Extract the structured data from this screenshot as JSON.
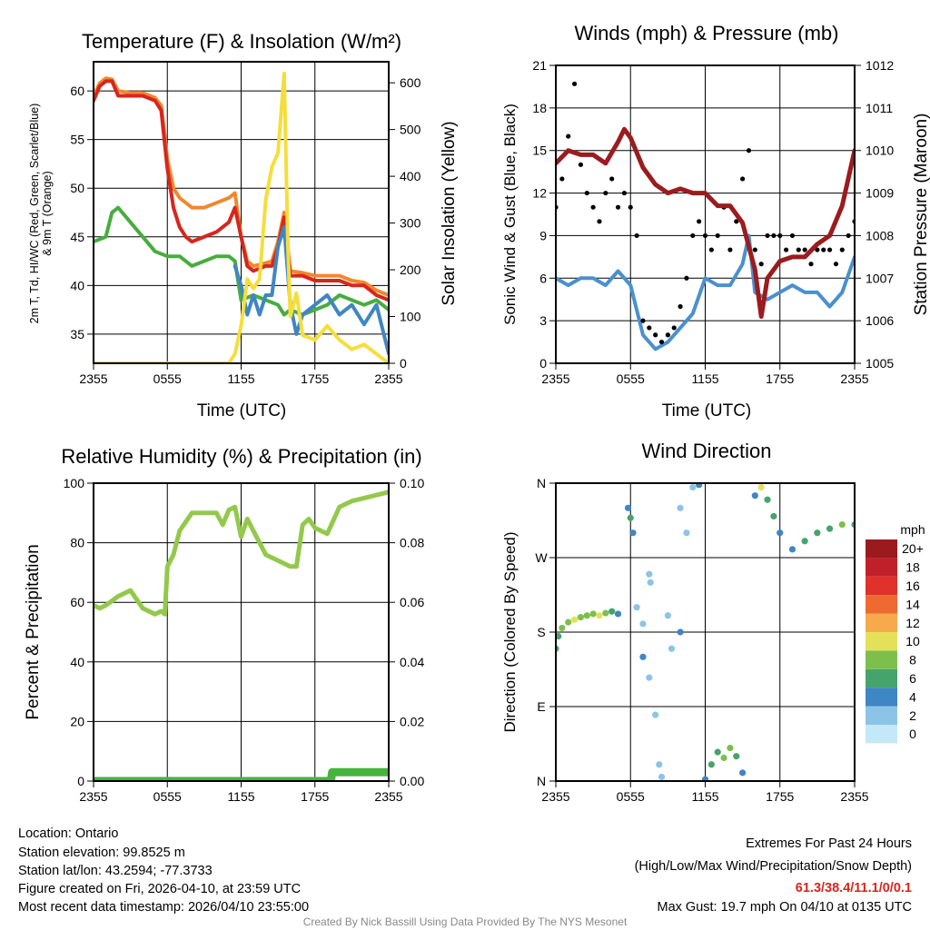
{
  "chart_data": [
    {
      "type": "line",
      "title": "Temperature (F) & Insolation (W/m²)",
      "xlabel": "Time (UTC)",
      "ylabel": "2m T, Td, HI/WC (Red, Green, Scarlet/Blue) & 9m T (Orange)",
      "ylabel_line1": "2m T, Td, HI/WC (Red, Green, Scarlet/Blue)",
      "ylabel_line2": "& 9m T (Orange)",
      "y2label": "Solar Insolation (Yellow)",
      "xticks": [
        "2355",
        "0555",
        "1155",
        "1755",
        "2355"
      ],
      "yticks": [
        "35",
        "40",
        "45",
        "50",
        "55",
        "60"
      ],
      "y2ticks": [
        "0",
        "100",
        "200",
        "300",
        "400",
        "500",
        "600"
      ],
      "xlim": [
        0,
        24
      ],
      "ylim": [
        32,
        63
      ],
      "y2lim": [
        0,
        645
      ],
      "series": [
        {
          "name": "9m T",
          "color": "#f0882e",
          "axis": "left",
          "x": [
            0,
            0.5,
            1,
            1.5,
            2,
            3,
            4,
            5,
            5.5,
            6,
            6.5,
            7,
            8,
            9,
            10,
            11,
            11.5,
            12,
            12.5,
            13,
            14,
            14.5,
            15,
            15.5,
            16,
            17,
            18,
            19,
            20,
            21,
            22,
            23,
            24
          ],
          "y": [
            59.5,
            60.8,
            61.3,
            61.2,
            60,
            59.8,
            59.8,
            59.3,
            58.5,
            53,
            50,
            49,
            48,
            48,
            48.5,
            49,
            49.5,
            45,
            42.5,
            42,
            42.3,
            42.5,
            44.5,
            47.5,
            41.5,
            41.3,
            41,
            41,
            41,
            40.5,
            40.3,
            39.5,
            39
          ]
        },
        {
          "name": "2m T",
          "color": "#d7261e",
          "axis": "left",
          "x": [
            0,
            0.5,
            1,
            1.5,
            2,
            3,
            4,
            5,
            5.5,
            6,
            6.5,
            7,
            7.5,
            8,
            9,
            10,
            11,
            11.5,
            12,
            12.5,
            13,
            14,
            14.5,
            15,
            15.5,
            16,
            17,
            18,
            19,
            20,
            21,
            22,
            23,
            24
          ],
          "y": [
            59,
            60.5,
            61,
            61,
            59.5,
            59.5,
            59.5,
            59,
            58,
            52,
            48,
            46,
            45,
            44.5,
            45,
            45.5,
            46.5,
            48,
            45,
            42,
            41.5,
            42,
            42,
            44,
            47,
            41,
            41,
            40.5,
            40.5,
            40.5,
            40,
            40,
            39,
            38.5
          ]
        },
        {
          "name": "Td",
          "color": "#47ad3e",
          "axis": "left",
          "x": [
            0,
            1,
            1.5,
            2,
            3,
            4,
            5,
            6,
            7,
            8,
            9,
            10,
            11,
            11.5,
            12,
            13,
            14,
            15,
            15.5,
            16,
            17,
            18,
            19,
            20,
            21,
            22,
            23,
            24
          ],
          "y": [
            44.5,
            45,
            47.5,
            48,
            46.5,
            45,
            43.5,
            43,
            43,
            42,
            42.5,
            43,
            43,
            42.5,
            38.5,
            39,
            38.5,
            38,
            37,
            37.5,
            37,
            37.5,
            38,
            39,
            38.5,
            38,
            38.5,
            37.5
          ]
        },
        {
          "name": "WC",
          "color": "#3f86c4",
          "axis": "left",
          "x": [
            11.5,
            12,
            12.5,
            13,
            13.5,
            14,
            14.5,
            15,
            15.5,
            16,
            16.5,
            17,
            18,
            19,
            20,
            21,
            22,
            23,
            24
          ],
          "y": [
            42,
            40,
            37,
            39,
            37,
            39,
            39,
            44,
            46,
            38,
            35,
            37,
            38,
            39,
            37,
            38,
            36,
            38,
            33
          ]
        },
        {
          "name": "Solar Insolation",
          "color": "#f5de3c",
          "axis": "right",
          "x": [
            0,
            11,
            11.5,
            12,
            12.5,
            13,
            13.5,
            14,
            14.5,
            15,
            15.5,
            15.8,
            16,
            16.5,
            17,
            18,
            19,
            20,
            21,
            22,
            23,
            24
          ],
          "y": [
            0,
            0,
            20,
            80,
            180,
            160,
            180,
            350,
            420,
            450,
            620,
            250,
            100,
            150,
            60,
            50,
            80,
            50,
            30,
            40,
            20,
            0
          ]
        }
      ]
    },
    {
      "type": "line",
      "title": "Winds (mph) & Pressure (mb)",
      "xlabel": "Time (UTC)",
      "ylabel": "Sonic Wind & Gust (Blue, Black)",
      "y2label": "Station Pressure (Maroon)",
      "xticks": [
        "2355",
        "0555",
        "1155",
        "1755",
        "2355"
      ],
      "yticks": [
        "0",
        "3",
        "6",
        "9",
        "12",
        "15",
        "18",
        "21"
      ],
      "y2ticks": [
        "1005",
        "1006",
        "1007",
        "1008",
        "1009",
        "1010",
        "1011",
        "1012"
      ],
      "xlim": [
        0,
        24
      ],
      "ylim": [
        0,
        21
      ],
      "y2lim": [
        1005,
        1012
      ],
      "series": [
        {
          "name": "Sonic Wind",
          "color": "#4a90cf",
          "axis": "left",
          "x": [
            0,
            1,
            2,
            3,
            4,
            5,
            6,
            7,
            8,
            9,
            10,
            11,
            12,
            13,
            14,
            15,
            15.5,
            16,
            17,
            18,
            19,
            20,
            21,
            22,
            23,
            24
          ],
          "y": [
            6,
            5.5,
            6,
            6,
            5.5,
            6.5,
            5.5,
            2,
            1,
            1.5,
            2.5,
            3.5,
            6,
            5.5,
            5.5,
            7,
            9,
            5,
            4.5,
            5,
            5.5,
            5,
            5,
            4,
            5,
            7.5
          ]
        },
        {
          "name": "Gust",
          "color": "#000000",
          "axis": "left",
          "mode": "points",
          "x": [
            0,
            0.5,
            1,
            1.5,
            2,
            2.5,
            3,
            3.5,
            4,
            4.5,
            5,
            5.5,
            6,
            6.5,
            7,
            7.5,
            8,
            8.5,
            9,
            9.5,
            10,
            10.5,
            11,
            11.5,
            12,
            12.5,
            13,
            13.5,
            14,
            14.5,
            15,
            15.5,
            16,
            16.5,
            17,
            17.5,
            18,
            18.5,
            19,
            19.5,
            20,
            20.5,
            21,
            21.5,
            22,
            22.5,
            23,
            23.5,
            24
          ],
          "y": [
            11,
            13,
            16,
            19.7,
            14,
            12,
            11,
            10,
            12,
            13,
            11,
            12,
            11,
            9,
            3,
            2.5,
            2,
            1.5,
            2,
            2.5,
            4,
            6,
            9,
            10,
            9,
            8,
            9,
            11,
            8,
            10,
            13,
            15,
            8,
            7,
            9,
            9,
            9,
            8,
            9,
            8,
            8,
            7,
            8,
            8,
            8,
            7,
            8,
            9,
            10
          ]
        },
        {
          "name": "Station Pressure",
          "color": "#9b1b1e",
          "axis": "right",
          "x": [
            0,
            1,
            2,
            3,
            4,
            5,
            5.5,
            6,
            7,
            8,
            9,
            10,
            11,
            12,
            13,
            14,
            15,
            16,
            16.5,
            17,
            18,
            19,
            20,
            21,
            22,
            23,
            24
          ],
          "y": [
            1009.7,
            1010,
            1009.9,
            1009.9,
            1009.7,
            1010.2,
            1010.5,
            1010.3,
            1009.6,
            1009.2,
            1009,
            1009.1,
            1009,
            1009,
            1008.7,
            1008.7,
            1008.3,
            1007.2,
            1006.1,
            1007,
            1007.4,
            1007.5,
            1007.5,
            1007.8,
            1008,
            1008.7,
            1010
          ]
        }
      ]
    },
    {
      "type": "line",
      "title": "Relative Humidity (%) & Precipitation (in)",
      "ylabel": "Percent & Precipitation",
      "xticks": [
        "2355",
        "0555",
        "1155",
        "1755",
        "2355"
      ],
      "yticks": [
        "0",
        "20",
        "40",
        "60",
        "80",
        "100"
      ],
      "y2ticks": [
        "0.00",
        "0.02",
        "0.04",
        "0.06",
        "0.08",
        "0.10"
      ],
      "xlim": [
        0,
        24
      ],
      "ylim": [
        0,
        100
      ],
      "y2lim": [
        0,
        0.1
      ],
      "series": [
        {
          "name": "Relative Humidity",
          "color": "#93c94a",
          "axis": "left",
          "x": [
            0,
            0.5,
            1,
            2,
            3,
            3.5,
            4,
            5,
            5.5,
            5.8,
            6,
            6.5,
            7,
            7.5,
            8,
            9,
            10,
            10.5,
            11,
            11.5,
            12,
            12.5,
            13,
            14,
            15,
            16,
            16.5,
            17,
            17.5,
            18,
            19,
            20,
            21,
            22,
            23,
            24
          ],
          "y": [
            59,
            58,
            59,
            62,
            64,
            61,
            58,
            56,
            57,
            56,
            72,
            76,
            84,
            87,
            90,
            90,
            90,
            86,
            91,
            92,
            82,
            88,
            84,
            76,
            74,
            72,
            72,
            86,
            88,
            85,
            83,
            92,
            94,
            95,
            96,
            97
          ]
        },
        {
          "name": "Precipitation",
          "color": "#47b33f",
          "axis": "right",
          "x": [
            0,
            19.3,
            19.4,
            24
          ],
          "y": [
            0,
            0,
            0.003,
            0.003
          ]
        }
      ]
    },
    {
      "type": "scatter",
      "title": "Wind Direction",
      "ylabel": "Direction (Colored By Speed)",
      "xticks": [
        "2355",
        "0555",
        "1155",
        "1755",
        "2355"
      ],
      "yticks": [
        "N",
        "E",
        "S",
        "W",
        "N"
      ],
      "xlim": [
        0,
        24
      ],
      "ylim": [
        0,
        360
      ],
      "legend_title": "mph",
      "legend_labels": [
        "0",
        "2",
        "4",
        "6",
        "8",
        "10",
        "12",
        "14",
        "16",
        "18",
        "20+"
      ],
      "legend_colors": [
        "#c4e8f7",
        "#8cc4e8",
        "#3f86c4",
        "#45a46c",
        "#7dbf4c",
        "#e5e05a",
        "#f6aa4a",
        "#ee6a30",
        "#e0312a",
        "#c0202a",
        "#9a1a1e"
      ],
      "points": [
        [
          0,
          160,
          6
        ],
        [
          0.2,
          175,
          6
        ],
        [
          0.5,
          185,
          7
        ],
        [
          1,
          192,
          8
        ],
        [
          1.5,
          195,
          10
        ],
        [
          2,
          198,
          7
        ],
        [
          2.5,
          200,
          8
        ],
        [
          3,
          202,
          8
        ],
        [
          3.5,
          200,
          9
        ],
        [
          4,
          203,
          7
        ],
        [
          4.5,
          205,
          5
        ],
        [
          5,
          202,
          4
        ],
        [
          5.8,
          330,
          4
        ],
        [
          6,
          318,
          6
        ],
        [
          6.2,
          300,
          3
        ],
        [
          6.5,
          210,
          2
        ],
        [
          7,
          190,
          1
        ],
        [
          7,
          150,
          3
        ],
        [
          7.5,
          250,
          1
        ],
        [
          7.6,
          240,
          2
        ],
        [
          7.5,
          125,
          1
        ],
        [
          8,
          80,
          1
        ],
        [
          8.3,
          20,
          1
        ],
        [
          8.5,
          5,
          1
        ],
        [
          9,
          200,
          1
        ],
        [
          9.3,
          160,
          2
        ],
        [
          10,
          180,
          3
        ],
        [
          10,
          330,
          1
        ],
        [
          10.5,
          300,
          2
        ],
        [
          11,
          355,
          2
        ],
        [
          11.5,
          358,
          3
        ],
        [
          12,
          2,
          3
        ],
        [
          12.5,
          20,
          5
        ],
        [
          13,
          35,
          6
        ],
        [
          13.5,
          28,
          7
        ],
        [
          14,
          40,
          7
        ],
        [
          14.5,
          30,
          6
        ],
        [
          15,
          10,
          4
        ],
        [
          16,
          345,
          4
        ],
        [
          16.5,
          355,
          10
        ],
        [
          17,
          340,
          6
        ],
        [
          17.5,
          320,
          6
        ],
        [
          18,
          300,
          4
        ],
        [
          19,
          280,
          4
        ],
        [
          20,
          290,
          5
        ],
        [
          21,
          300,
          5
        ],
        [
          22,
          305,
          6
        ],
        [
          23,
          310,
          7
        ],
        [
          24,
          310,
          5
        ]
      ]
    }
  ],
  "footer": {
    "location": "Location: Ontario",
    "elevation": "Station elevation: 99.8525 m",
    "latlon": "Station lat/lon: 43.2594; -77.3733",
    "created": "Figure created on Fri, 2026-04-10, at 23:59 UTC",
    "recent": "Most recent data timestamp: 2026/04/10 23:55:00",
    "extremes_title": "Extremes For Past 24 Hours",
    "extremes_sub": "(High/Low/Max Wind/Precipitation/Snow Depth)",
    "extremes_values": "61.3/38.4/11.1/0/0.1",
    "max_gust": "Max Gust: 19.7 mph On 04/10 at 0135 UTC",
    "credit": "Created By Nick Bassill Using Data Provided By The NYS Mesonet"
  },
  "colors": {
    "extremes": "#d7261e",
    "credit": "#888888"
  }
}
